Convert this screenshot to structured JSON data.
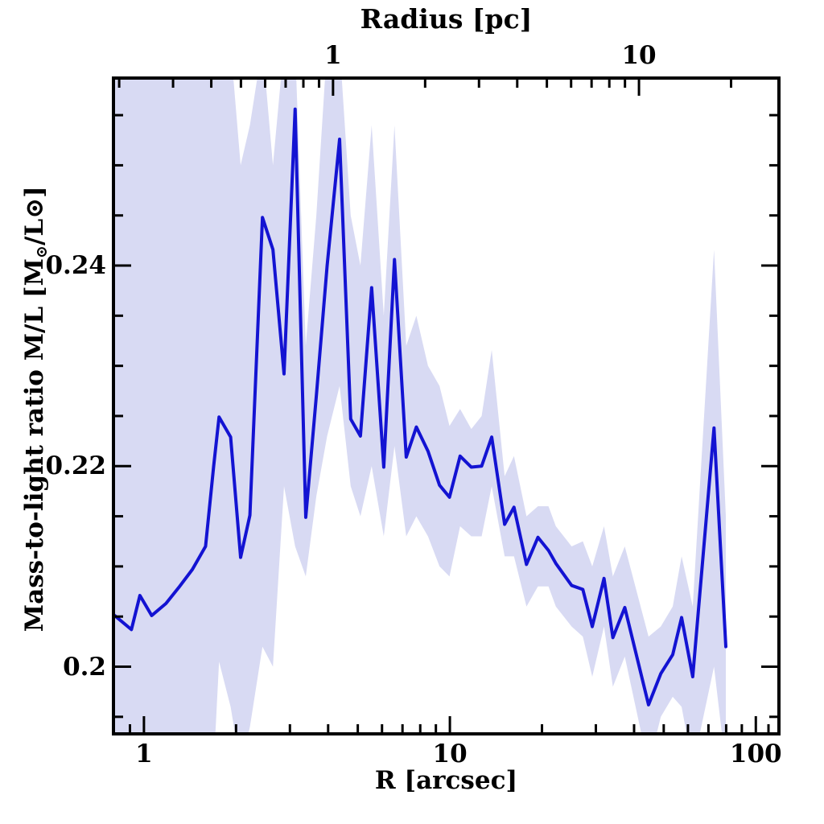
{
  "figure": {
    "background": "#ffffff",
    "frame_color": "#000000",
    "text_color": "#000000"
  },
  "chart_data": {
    "type": "line",
    "title": "",
    "xlabel": "R [arcsec]",
    "xlabel_top": "Radius [pc]",
    "ylabel_plain": "Mass-to-light ratio M/L [Msun/Lsun]",
    "legend": "none",
    "grid": false,
    "axes": {
      "bottom": {
        "label": "R [arcsec]",
        "scale": "log",
        "range_arcsec": [
          0.795,
          119
        ],
        "major_ticks": [
          {
            "value": 1,
            "label": "1"
          },
          {
            "value": 10,
            "label": "10"
          },
          {
            "value": 100,
            "label": "100"
          }
        ],
        "minor_ticks": [
          0.9,
          2,
          3,
          4,
          5,
          6,
          7,
          8,
          9,
          20,
          30,
          40,
          50,
          60,
          70,
          80,
          90,
          110
        ]
      },
      "top": {
        "label": "Radius [pc]",
        "scale": "log",
        "arcsec_per_pc": 4.15,
        "major_ticks": [
          {
            "value": 1,
            "label": "1"
          },
          {
            "value": 10,
            "label": "10"
          }
        ],
        "minor_ticks_pc": [
          0.2,
          0.3,
          0.4,
          0.5,
          0.6,
          0.7,
          0.8,
          0.9,
          2,
          3,
          4,
          5,
          6,
          7,
          8,
          9,
          20
        ]
      },
      "left": {
        "label_parts": {
          "prefix": "Mass-to-light ratio M/L [M",
          "sun_sub": "⊙",
          "mid": "/L",
          "sun": "⊙",
          "suffix": "]"
        },
        "scale": "linear",
        "range": [
          0.1933,
          0.2587
        ],
        "major_ticks": [
          {
            "value": 0.2,
            "label": "0.2"
          },
          {
            "value": 0.22,
            "label": "0.22"
          },
          {
            "value": 0.24,
            "label": "0.24"
          }
        ],
        "minor_ticks": [
          0.195,
          0.205,
          0.21,
          0.215,
          0.225,
          0.23,
          0.235,
          0.245,
          0.25,
          0.255
        ]
      },
      "right": {
        "mirrors": "left",
        "labels": false
      }
    },
    "series": [
      {
        "name": "mass-to-light-profile",
        "color": "#1313d2",
        "line_width": 4,
        "R_arcsec": [
          0.795,
          0.91,
          0.97,
          1.06,
          1.18,
          1.3,
          1.44,
          1.59,
          1.69,
          1.76,
          1.92,
          2.07,
          2.22,
          2.44,
          2.64,
          2.87,
          3.12,
          3.38,
          3.66,
          3.97,
          4.36,
          4.74,
          5.1,
          5.55,
          6.08,
          6.59,
          7.2,
          7.77,
          8.48,
          9.25,
          9.97,
          10.8,
          11.75,
          12.7,
          13.7,
          15.1,
          16.2,
          17.8,
          19.4,
          21.0,
          22.2,
          25.0,
          27.2,
          29.2,
          31.9,
          34.1,
          37.3,
          44.6,
          48.9,
          53.5,
          57.2,
          62.2,
          73.0,
          79.8
        ],
        "ml": [
          0.2052,
          0.2037,
          0.2071,
          0.2051,
          0.2063,
          0.2079,
          0.2097,
          0.212,
          0.22,
          0.2249,
          0.2229,
          0.2109,
          0.2151,
          0.2448,
          0.2416,
          0.2292,
          0.2556,
          0.2149,
          0.227,
          0.24,
          0.2526,
          0.2247,
          0.223,
          0.2378,
          0.2199,
          0.2406,
          0.2209,
          0.2239,
          0.2215,
          0.2181,
          0.2169,
          0.221,
          0.2199,
          0.22,
          0.2229,
          0.2142,
          0.2159,
          0.2102,
          0.2129,
          0.2116,
          0.2103,
          0.2081,
          0.2077,
          0.204,
          0.2088,
          0.2029,
          0.2059,
          0.1962,
          0.1993,
          0.2012,
          0.2049,
          0.199,
          0.2238,
          0.202
        ]
      }
    ],
    "band": {
      "name": "uncertainty-band",
      "color": "#d8daf3",
      "follows_series_R": true,
      "lower": [
        0.19,
        0.19,
        0.19,
        0.19,
        0.19,
        0.19,
        0.19,
        0.19,
        0.19,
        0.2005,
        0.196,
        0.19,
        0.194,
        0.202,
        0.2,
        0.218,
        0.212,
        0.209,
        0.217,
        0.223,
        0.228,
        0.218,
        0.215,
        0.22,
        0.213,
        0.222,
        0.213,
        0.215,
        0.213,
        0.21,
        0.209,
        0.214,
        0.213,
        0.213,
        0.218,
        0.211,
        0.211,
        0.206,
        0.208,
        0.208,
        0.206,
        0.204,
        0.203,
        0.199,
        0.204,
        0.198,
        0.201,
        0.19,
        0.195,
        0.197,
        0.196,
        0.19,
        0.2,
        0.19
      ],
      "upper": [
        0.262,
        0.262,
        0.262,
        0.262,
        0.262,
        0.262,
        0.262,
        0.262,
        0.262,
        0.262,
        0.262,
        0.25,
        0.254,
        0.262,
        0.25,
        0.262,
        0.262,
        0.232,
        0.245,
        0.262,
        0.262,
        0.245,
        0.24,
        0.254,
        0.235,
        0.254,
        0.232,
        0.235,
        0.23,
        0.228,
        0.224,
        0.2257,
        0.2237,
        0.225,
        0.2316,
        0.219,
        0.221,
        0.215,
        0.216,
        0.216,
        0.214,
        0.212,
        0.2125,
        0.21,
        0.214,
        0.209,
        0.212,
        0.203,
        0.204,
        0.206,
        0.211,
        0.206,
        0.2416,
        0.215
      ]
    }
  }
}
